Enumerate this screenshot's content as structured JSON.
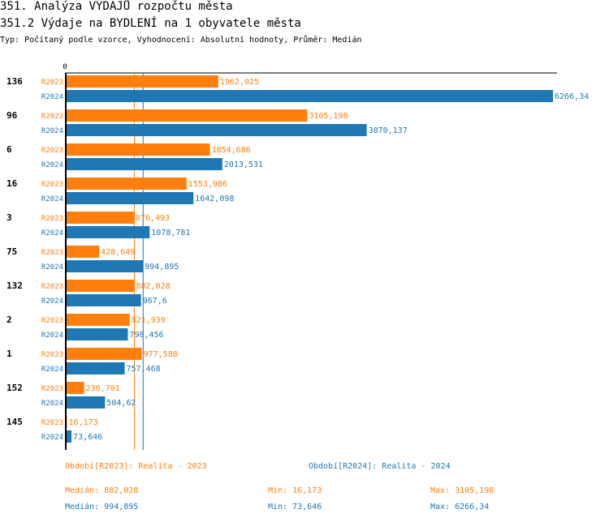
{
  "header": {
    "title": "351. Analýza VÝDAJŮ rozpočtu města",
    "subtitle": "351.2 Výdaje na BYDLENÍ na 1 obyvatele města",
    "meta": "Typ: Počítaný podle vzorce, Vyhodnocení: Absolutní hodnoty, Průměr: Medián"
  },
  "colors": {
    "r2023": "#ff7f0e",
    "r2024": "#1f77b4"
  },
  "chart_data": {
    "type": "bar",
    "orientation": "horizontal",
    "title": "351.2 Výdaje na BYDLENÍ na 1 obyvatele města",
    "axis_zero_label": "0",
    "xlim": [
      0,
      6266.34
    ],
    "categories": [
      "136",
      "96",
      "6",
      "16",
      "3",
      "75",
      "132",
      "2",
      "1",
      "152",
      "145"
    ],
    "series": [
      {
        "name": "R2023",
        "values": [
          1962.025,
          3105.198,
          1854.686,
          1553.986,
          876.493,
          428.649,
          882.028,
          821.939,
          977.588,
          236.701,
          16.173
        ],
        "labels": [
          "1962,025",
          "3105,198",
          "1854,686",
          "1553,986",
          "876,493",
          "428,649",
          "882,028",
          "821,939",
          "977,588",
          "236,701",
          "16,173"
        ],
        "median": 882.028
      },
      {
        "name": "R2024",
        "values": [
          6266.34,
          3870.137,
          2013.531,
          1642.098,
          1078.781,
          994.895,
          967.6,
          798.456,
          757.468,
          504.62,
          73.646
        ],
        "labels": [
          "6266,34",
          "3870,137",
          "2013,531",
          "1642,098",
          "1078,781",
          "994,895",
          "967,6",
          "798,456",
          "757,468",
          "504,62",
          "73,646"
        ],
        "median": 994.895
      }
    ]
  },
  "legend": {
    "r2023": "Období[R2023]: Realita - 2023",
    "r2024": "Období[R2024]: Realita - 2024"
  },
  "stats": {
    "r2023": {
      "median": "Medián: 882,028",
      "min": "Min: 16,173",
      "max": "Max: 3105,198"
    },
    "r2024": {
      "median": "Medián: 994,895",
      "min": "Min: 73,646",
      "max": "Max: 6266,34"
    }
  }
}
